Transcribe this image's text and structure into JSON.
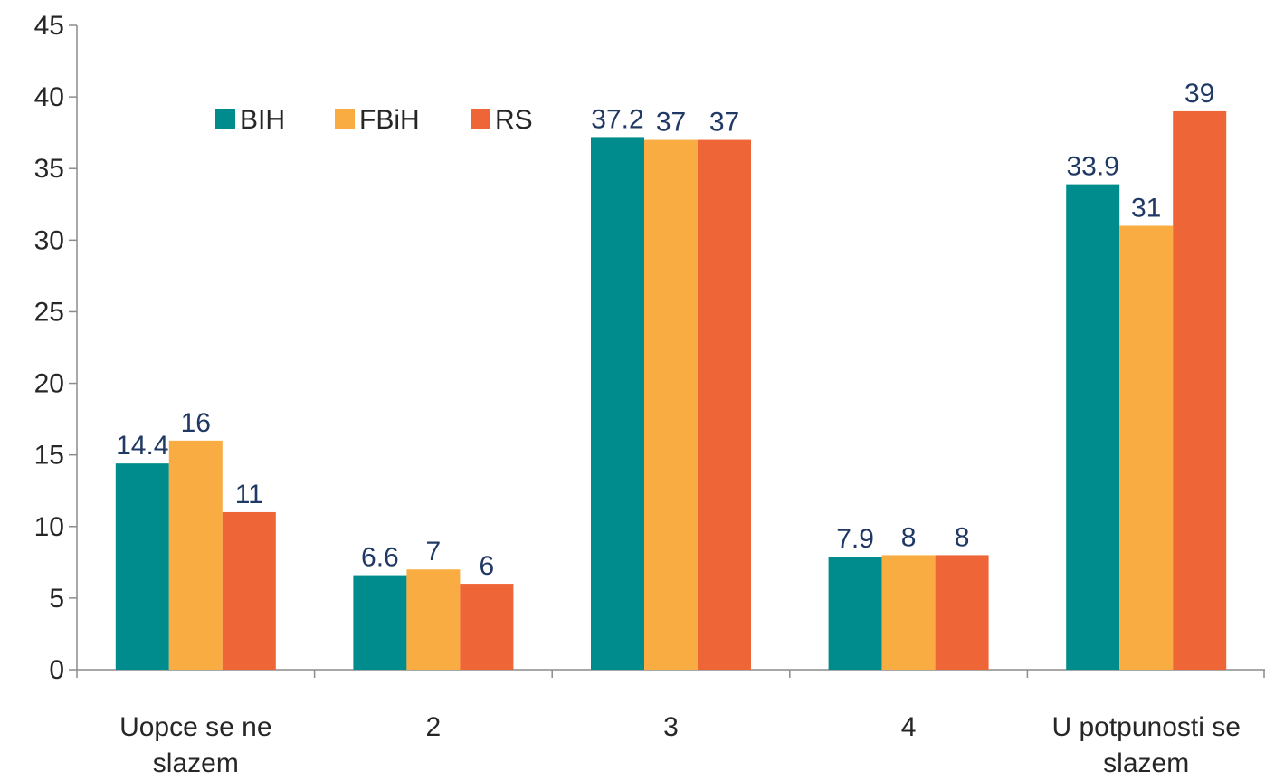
{
  "chart_data": {
    "type": "bar",
    "categories": [
      [
        "Uopce se ne",
        "slazem"
      ],
      [
        "2"
      ],
      [
        "3"
      ],
      [
        "4"
      ],
      [
        "U potpunosti se",
        "slazem"
      ]
    ],
    "series": [
      {
        "name": "BIH",
        "color": "#008c8c",
        "values": [
          14.4,
          6.6,
          37.2,
          7.9,
          33.9
        ]
      },
      {
        "name": "FBiH",
        "color": "#f9ac41",
        "values": [
          16,
          7,
          37,
          8,
          31
        ]
      },
      {
        "name": "RS",
        "color": "#ee6537",
        "values": [
          11,
          6,
          37,
          8,
          39
        ]
      }
    ],
    "ylim": [
      0,
      45
    ],
    "yticks": [
      0,
      5,
      10,
      15,
      20,
      25,
      30,
      35,
      40,
      45
    ],
    "grid": false,
    "legend_position": "top-left"
  }
}
